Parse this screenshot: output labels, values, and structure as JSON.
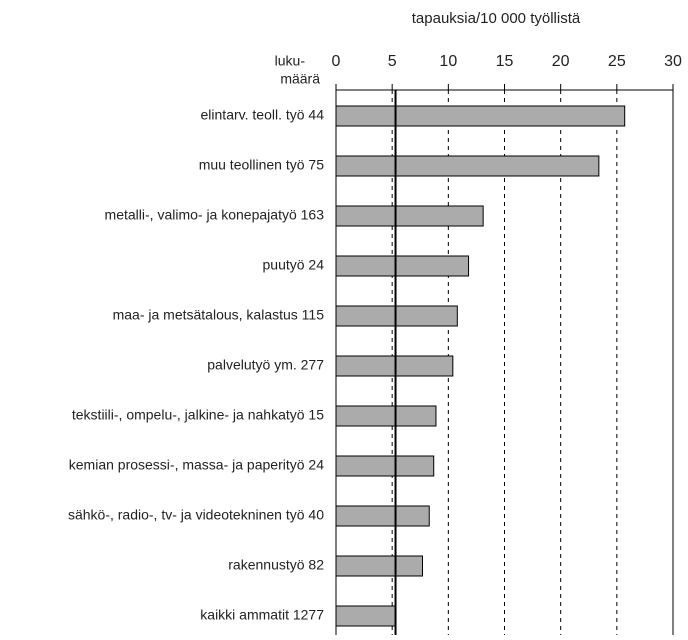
{
  "chart_data": {
    "type": "barh",
    "title": "tapauksia/10 000 työllistä",
    "axis_label": [
      "luku-",
      "määrä"
    ],
    "categories": [
      "elintarv. teoll. työ 44",
      "muu teollinen työ 75",
      "metalli-, valimo- ja konepajatyö 163",
      "puutyö 24",
      "maa- ja metsätalous, kalastus 115",
      "palvelutyö ym. 277",
      "tekstiili-, ompelu-, jalkine- ja nahkatyö 15",
      "kemian prosessi-, massa- ja paperityö 24",
      "sähkö-, radio-, tv- ja videotekninen työ 40",
      "rakennustyö 82",
      "kaikki ammatit 1277"
    ],
    "values": [
      25.7,
      23.4,
      13.1,
      11.8,
      10.8,
      10.4,
      8.9,
      8.7,
      8.3,
      7.7,
      5.3
    ],
    "color": "#ababab",
    "xlim": [
      0,
      30
    ],
    "xticks": [
      0,
      5,
      10,
      15,
      20,
      25,
      30
    ],
    "grid": true
  }
}
